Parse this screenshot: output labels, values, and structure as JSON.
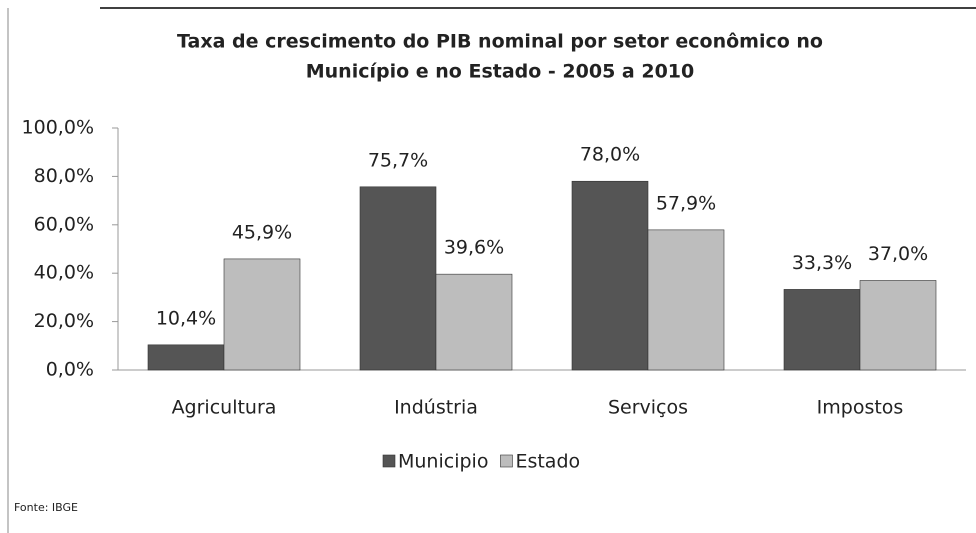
{
  "chart_data": {
    "type": "bar",
    "title": [
      "Taxa de crescimento do PIB nominal por setor econômico no",
      "Município e no Estado - 2005 a 2010"
    ],
    "categories": [
      "Agricultura",
      "Indústria",
      "Serviços",
      "Impostos"
    ],
    "series": [
      {
        "name": "Municipio",
        "color": "#555555",
        "values": [
          10.4,
          75.7,
          78.0,
          33.3
        ],
        "value_labels": [
          "10,4%",
          "75,7%",
          "78,0%",
          "33,3%"
        ]
      },
      {
        "name": "Estado",
        "color": "#bdbdbd",
        "values": [
          45.9,
          39.6,
          57.9,
          37.0
        ],
        "value_labels": [
          "45,9%",
          "39,6%",
          "57,9%",
          "37,0%"
        ]
      }
    ],
    "ylim": [
      0,
      100
    ],
    "yticks": [
      {
        "value": 0,
        "label": "0,0%"
      },
      {
        "value": 20,
        "label": "20,0%"
      },
      {
        "value": 40,
        "label": "40,0%"
      },
      {
        "value": 60,
        "label": "60,0%"
      },
      {
        "value": 80,
        "label": "80,0%"
      },
      {
        "value": 100,
        "label": "100,0%"
      }
    ],
    "grid": false,
    "legend": "bottom",
    "source": "Fonte: IBGE"
  }
}
